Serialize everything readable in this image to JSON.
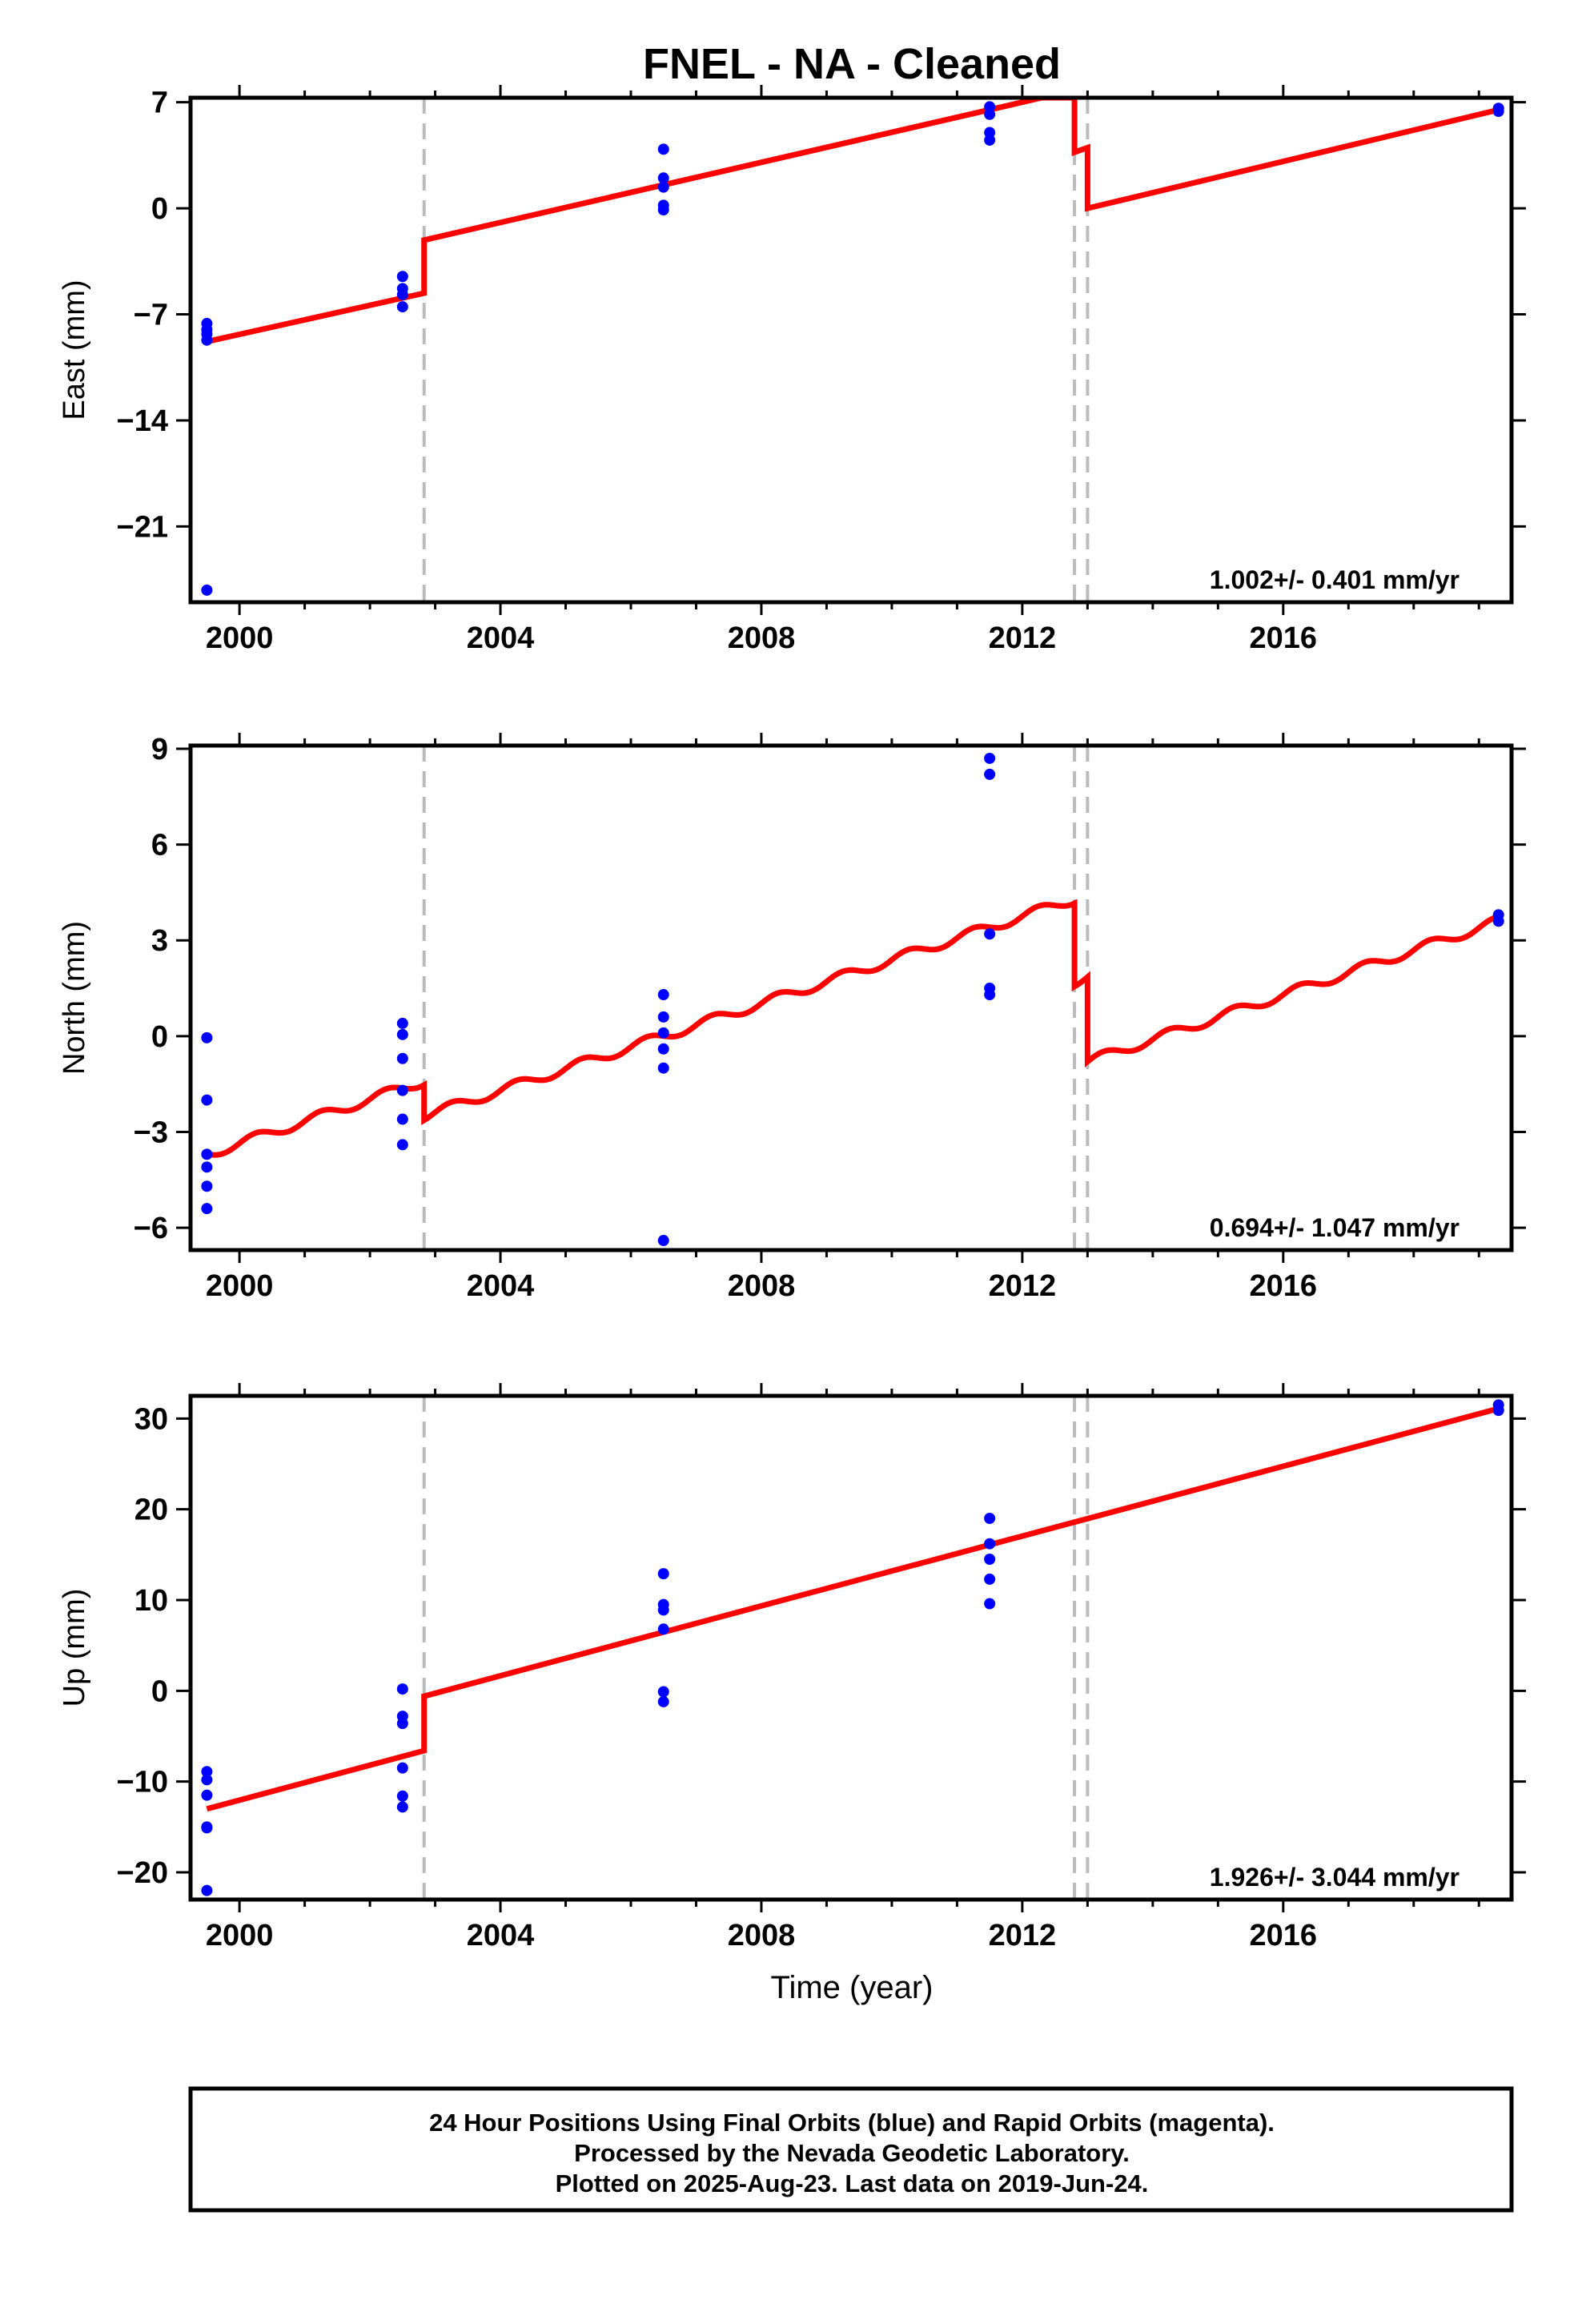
{
  "title": "FNEL  - NA - Cleaned",
  "colors": {
    "final_orbits": "#0000ff",
    "model": "#ff0000",
    "offsets": "#bbbbbb",
    "frame": "#000000"
  },
  "chart_data": [
    {
      "type": "scatter",
      "ylabel": "East (mm)",
      "xlim": [
        1999.25,
        2019.5
      ],
      "ylim": [
        -26,
        7.3
      ],
      "yticks": [
        7,
        0,
        -7,
        -14,
        -21
      ],
      "xticks": [
        2000,
        2004,
        2008,
        2012,
        2016
      ],
      "offsets": [
        2002.83,
        2012.8,
        2013.0
      ],
      "rate_text": "1.002+/- 0.401 mm/yr",
      "points": [
        [
          1999.5,
          -7.6
        ],
        [
          1999.5,
          -8.0
        ],
        [
          1999.5,
          -8.3
        ],
        [
          1999.5,
          -8.7
        ],
        [
          1999.5,
          -25.2
        ],
        [
          2002.5,
          -4.5
        ],
        [
          2002.5,
          -5.3
        ],
        [
          2002.5,
          -5.7
        ],
        [
          2002.5,
          -6.5
        ],
        [
          2006.5,
          3.9
        ],
        [
          2006.5,
          2.0
        ],
        [
          2006.5,
          1.4
        ],
        [
          2006.5,
          0.2
        ],
        [
          2006.5,
          -0.1
        ],
        [
          2011.5,
          6.7
        ],
        [
          2011.5,
          6.2
        ],
        [
          2011.5,
          5.0
        ],
        [
          2011.5,
          4.5
        ],
        [
          2019.3,
          6.6
        ],
        [
          2019.3,
          6.4
        ]
      ],
      "model": [
        [
          1999.5,
          -8.8
        ],
        [
          2002.83,
          -5.6
        ],
        [
          2002.83,
          -2.1
        ],
        [
          2012.3,
          7.3
        ],
        [
          2012.8,
          7.3
        ],
        [
          2012.8,
          3.7
        ],
        [
          2013.0,
          4.0
        ],
        [
          2013.0,
          0.0
        ],
        [
          2019.3,
          6.5
        ]
      ]
    },
    {
      "type": "scatter",
      "ylabel": "North (mm)",
      "xlim": [
        1999.25,
        2019.5
      ],
      "ylim": [
        -6.7,
        9.1
      ],
      "yticks": [
        9,
        6,
        3,
        0,
        -3,
        -6
      ],
      "xticks": [
        2000,
        2004,
        2008,
        2012,
        2016
      ],
      "offsets": [
        2002.83,
        2012.8,
        2013.0
      ],
      "rate_text": "0.694+/- 1.047 mm/yr",
      "points": [
        [
          1999.5,
          -0.05
        ],
        [
          1999.5,
          -2.0
        ],
        [
          1999.5,
          -3.7
        ],
        [
          1999.5,
          -4.1
        ],
        [
          1999.5,
          -4.7
        ],
        [
          1999.5,
          -5.4
        ],
        [
          2002.5,
          0.4
        ],
        [
          2002.5,
          0.05
        ],
        [
          2002.5,
          -0.7
        ],
        [
          2002.5,
          -1.7
        ],
        [
          2002.5,
          -2.6
        ],
        [
          2002.5,
          -3.4
        ],
        [
          2006.5,
          1.3
        ],
        [
          2006.5,
          0.6
        ],
        [
          2006.5,
          0.1
        ],
        [
          2006.5,
          -0.4
        ],
        [
          2006.5,
          -1.0
        ],
        [
          2006.5,
          -6.4
        ],
        [
          2011.5,
          8.7
        ],
        [
          2011.5,
          8.2
        ],
        [
          2011.5,
          3.2
        ],
        [
          2011.5,
          1.5
        ],
        [
          2011.5,
          1.3
        ],
        [
          2019.3,
          3.8
        ],
        [
          2019.3,
          3.6
        ]
      ],
      "model_segments": [
        {
          "x0": 1999.5,
          "y0": -3.7,
          "x1": 2002.83,
          "y1": -1.4
        },
        {
          "x0": 2002.83,
          "y0": -2.5,
          "x1": 2012.8,
          "y1": 4.3
        },
        {
          "x0": 2012.8,
          "y0": 1.7,
          "x1": 2013.0,
          "y1": 1.85
        },
        {
          "x0": 2013.0,
          "y0": -0.8,
          "x1": 2019.3,
          "y1": 3.6
        }
      ],
      "model_seasonal_amplitude": 0.15
    },
    {
      "type": "scatter",
      "ylabel": "Up (mm)",
      "xlabel": "Time (year)",
      "xlim": [
        1999.25,
        2019.5
      ],
      "ylim": [
        -23,
        32.5
      ],
      "yticks": [
        30,
        20,
        10,
        0,
        -10,
        -20
      ],
      "xticks": [
        2000,
        2004,
        2008,
        2012,
        2016
      ],
      "offsets": [
        2002.83,
        2012.8,
        2013.0
      ],
      "rate_text": "1.926+/- 3.044 mm/yr",
      "points": [
        [
          1999.5,
          -8.9
        ],
        [
          1999.5,
          -9.8
        ],
        [
          1999.5,
          -11.5
        ],
        [
          1999.5,
          -15.0
        ],
        [
          1999.5,
          -15.1
        ],
        [
          1999.5,
          -22.0
        ],
        [
          2002.5,
          0.2
        ],
        [
          2002.5,
          -2.8
        ],
        [
          2002.5,
          -3.6
        ],
        [
          2002.5,
          -8.5
        ],
        [
          2002.5,
          -11.6
        ],
        [
          2002.5,
          -12.8
        ],
        [
          2006.5,
          12.9
        ],
        [
          2006.5,
          9.5
        ],
        [
          2006.5,
          8.9
        ],
        [
          2006.5,
          6.8
        ],
        [
          2006.5,
          -0.1
        ],
        [
          2006.5,
          -1.2
        ],
        [
          2011.5,
          19.0
        ],
        [
          2011.5,
          16.2
        ],
        [
          2011.5,
          14.5
        ],
        [
          2011.5,
          12.3
        ],
        [
          2011.5,
          9.6
        ],
        [
          2019.3,
          31.5
        ],
        [
          2019.3,
          30.9
        ]
      ],
      "model": [
        [
          1999.5,
          -13.0
        ],
        [
          2002.83,
          -6.6
        ],
        [
          2002.83,
          -0.6
        ],
        [
          2019.3,
          31.1
        ]
      ]
    }
  ],
  "footer": {
    "line1": "24 Hour Positions Using Final Orbits (blue) and Rapid Orbits (magenta).",
    "line2": "Processed by the Nevada Geodetic Laboratory.",
    "line3": "Plotted on 2025-Aug-23. Last data on 2019-Jun-24."
  }
}
